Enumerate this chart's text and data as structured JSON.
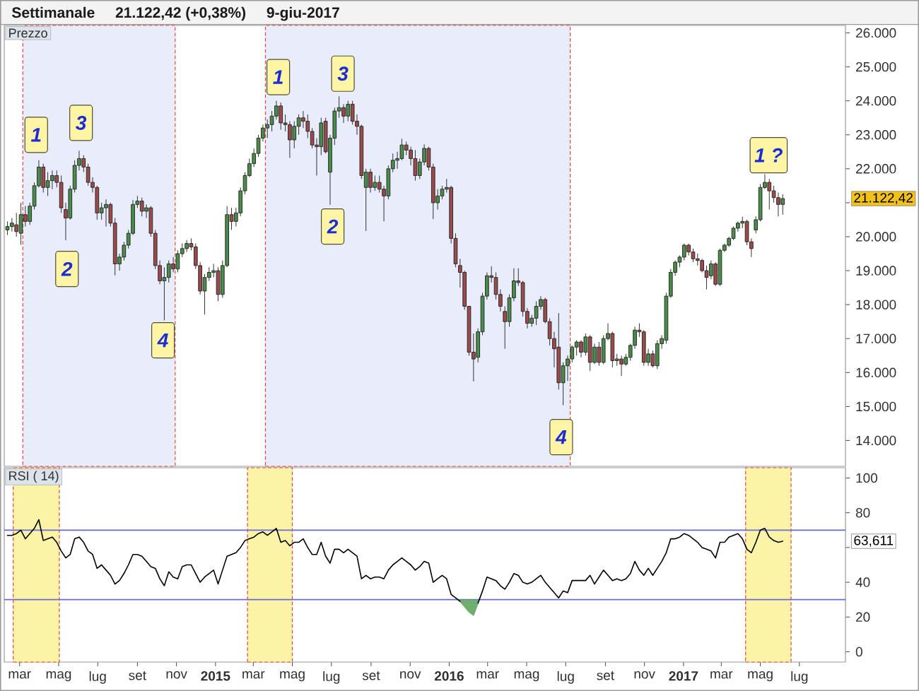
{
  "chart_data": [
    {
      "type": "candlestick",
      "title": "Prezzo",
      "annotations": [
        "Settimanale",
        "21.122,42 (+0,38%)",
        "9-giu-2017",
        {
          "text": "1",
          "x": "2014-03-27",
          "y": 23000
        },
        {
          "text": "2",
          "x": "2014-05-14",
          "y": 19050
        },
        {
          "text": "3",
          "x": "2014-06-05",
          "y": 23350
        },
        {
          "text": "4",
          "x": "2014-10-11",
          "y": 16950
        },
        {
          "text": "1",
          "x": "2015-04-09",
          "y": 24700
        },
        {
          "text": "2",
          "x": "2015-07-03",
          "y": 20300
        },
        {
          "text": "3",
          "x": "2015-07-19",
          "y": 24800
        },
        {
          "text": "4",
          "x": "2016-06-24",
          "y": 14100
        },
        {
          "text": "1 ?",
          "x": "2017-05-14",
          "y": 22400
        },
        "21.122,42"
      ],
      "x": [
        "2014-02-10",
        "2014-02-17",
        "2014-02-24",
        "2014-03-03",
        "2014-03-10",
        "2014-03-17",
        "2014-03-24",
        "2014-03-31",
        "2014-04-07",
        "2014-04-14",
        "2014-04-21",
        "2014-04-28",
        "2014-05-05",
        "2014-05-12",
        "2014-05-19",
        "2014-05-26",
        "2014-06-02",
        "2014-06-09",
        "2014-06-16",
        "2014-06-23",
        "2014-06-30",
        "2014-07-07",
        "2014-07-14",
        "2014-07-21",
        "2014-07-28",
        "2014-08-04",
        "2014-08-11",
        "2014-08-18",
        "2014-08-25",
        "2014-09-01",
        "2014-09-08",
        "2014-09-15",
        "2014-09-22",
        "2014-09-29",
        "2014-10-06",
        "2014-10-13",
        "2014-10-20",
        "2014-10-27",
        "2014-11-03",
        "2014-11-10",
        "2014-11-17",
        "2014-11-24",
        "2014-12-01",
        "2014-12-08",
        "2014-12-15",
        "2014-12-22",
        "2014-12-29",
        "2015-01-05",
        "2015-01-12",
        "2015-01-19",
        "2015-01-26",
        "2015-02-02",
        "2015-02-09",
        "2015-02-16",
        "2015-02-23",
        "2015-03-02",
        "2015-03-09",
        "2015-03-16",
        "2015-03-23",
        "2015-03-30",
        "2015-04-06",
        "2015-04-13",
        "2015-04-20",
        "2015-04-27",
        "2015-05-04",
        "2015-05-11",
        "2015-05-18",
        "2015-05-25",
        "2015-06-01",
        "2015-06-08",
        "2015-06-15",
        "2015-06-22",
        "2015-06-29",
        "2015-07-06",
        "2015-07-13",
        "2015-07-20",
        "2015-07-27",
        "2015-08-03",
        "2015-08-10",
        "2015-08-17",
        "2015-08-24",
        "2015-08-31",
        "2015-09-07",
        "2015-09-14",
        "2015-09-21",
        "2015-09-28",
        "2015-10-05",
        "2015-10-12",
        "2015-10-19",
        "2015-10-26",
        "2015-11-02",
        "2015-11-09",
        "2015-11-16",
        "2015-11-23",
        "2015-11-30",
        "2015-12-07",
        "2015-12-14",
        "2015-12-21",
        "2015-12-28",
        "2016-01-04",
        "2016-01-11",
        "2016-01-18",
        "2016-01-25",
        "2016-02-01",
        "2016-02-08",
        "2016-02-15",
        "2016-02-22",
        "2016-02-29",
        "2016-03-07",
        "2016-03-14",
        "2016-03-21",
        "2016-03-28",
        "2016-04-04",
        "2016-04-11",
        "2016-04-18",
        "2016-04-25",
        "2016-05-02",
        "2016-05-09",
        "2016-05-16",
        "2016-05-23",
        "2016-05-30",
        "2016-06-06",
        "2016-06-13",
        "2016-06-20",
        "2016-06-27",
        "2016-07-04",
        "2016-07-11",
        "2016-07-18",
        "2016-07-25",
        "2016-08-01",
        "2016-08-08",
        "2016-08-15",
        "2016-08-22",
        "2016-08-29",
        "2016-09-05",
        "2016-09-12",
        "2016-09-19",
        "2016-09-26",
        "2016-10-03",
        "2016-10-10",
        "2016-10-17",
        "2016-10-24",
        "2016-10-31",
        "2016-11-07",
        "2016-11-14",
        "2016-11-21",
        "2016-11-28",
        "2016-12-05",
        "2016-12-12",
        "2016-12-19",
        "2016-12-26",
        "2017-01-02",
        "2017-01-09",
        "2017-01-16",
        "2017-01-23",
        "2017-01-30",
        "2017-02-06",
        "2017-02-13",
        "2017-02-20",
        "2017-02-27",
        "2017-03-06",
        "2017-03-13",
        "2017-03-20",
        "2017-03-27",
        "2017-04-03",
        "2017-04-10",
        "2017-04-17",
        "2017-04-24",
        "2017-05-01",
        "2017-05-08",
        "2017-05-15",
        "2017-05-22",
        "2017-05-29",
        "2017-06-05"
      ],
      "ohlc": [
        [
          20200,
          20450,
          20050,
          20300
        ],
        [
          20300,
          20550,
          20150,
          20400
        ],
        [
          20350,
          20700,
          20000,
          20150
        ],
        [
          20100,
          21000,
          19760,
          20650
        ],
        [
          20650,
          20900,
          20300,
          20450
        ],
        [
          20450,
          21000,
          20350,
          20900
        ],
        [
          20900,
          21600,
          20800,
          21500
        ],
        [
          21500,
          22250,
          21450,
          22050
        ],
        [
          22050,
          22150,
          21300,
          21450
        ],
        [
          21450,
          21900,
          21200,
          21650
        ],
        [
          21650,
          21950,
          21400,
          21800
        ],
        [
          21800,
          21950,
          21450,
          21600
        ],
        [
          21600,
          21800,
          20700,
          20850
        ],
        [
          20800,
          21000,
          19900,
          20550
        ],
        [
          20550,
          21500,
          20500,
          21400
        ],
        [
          21400,
          22250,
          21300,
          22100
        ],
        [
          22100,
          22530,
          21950,
          22300
        ],
        [
          22300,
          22400,
          21900,
          22050
        ],
        [
          22050,
          22150,
          21500,
          21600
        ],
        [
          21600,
          21750,
          21300,
          21450
        ],
        [
          21450,
          21500,
          20500,
          20700
        ],
        [
          20700,
          21000,
          20500,
          20850
        ],
        [
          20850,
          21100,
          20300,
          20950
        ],
        [
          20950,
          21000,
          20300,
          20400
        ],
        [
          20400,
          20550,
          18860,
          19200
        ],
        [
          19200,
          19500,
          19000,
          19400
        ],
        [
          19400,
          19850,
          19300,
          19750
        ],
        [
          19750,
          20200,
          19650,
          20100
        ],
        [
          20100,
          21080,
          20050,
          20950
        ],
        [
          20950,
          21200,
          20850,
          21050
        ],
        [
          21050,
          21150,
          20600,
          20750
        ],
        [
          20750,
          20950,
          20550,
          20850
        ],
        [
          20850,
          20900,
          20000,
          20100
        ],
        [
          20100,
          20200,
          19050,
          19150
        ],
        [
          19150,
          19300,
          18600,
          18700
        ],
        [
          18700,
          19100,
          17540,
          18800
        ],
        [
          18800,
          19300,
          18650,
          19200
        ],
        [
          19200,
          19400,
          18950,
          19050
        ],
        [
          19050,
          19600,
          18950,
          19500
        ],
        [
          19500,
          19800,
          19400,
          19650
        ],
        [
          19650,
          19900,
          19550,
          19800
        ],
        [
          19800,
          19950,
          19600,
          19700
        ],
        [
          19700,
          19800,
          19050,
          19150
        ],
        [
          19150,
          19250,
          18300,
          18400
        ],
        [
          18400,
          18900,
          17710,
          18800
        ],
        [
          18800,
          19100,
          18700,
          18950
        ],
        [
          18950,
          19200,
          18800,
          19000
        ],
        [
          19000,
          19100,
          18100,
          18300
        ],
        [
          18300,
          19300,
          18200,
          19150
        ],
        [
          19150,
          20900,
          19100,
          20650
        ],
        [
          20650,
          20850,
          20200,
          20450
        ],
        [
          20450,
          20850,
          20300,
          20700
        ],
        [
          20700,
          21450,
          20600,
          21350
        ],
        [
          21350,
          21900,
          21250,
          21800
        ],
        [
          21800,
          22300,
          21750,
          22150
        ],
        [
          22150,
          22600,
          22050,
          22450
        ],
        [
          22450,
          23000,
          22350,
          22900
        ],
        [
          22900,
          23300,
          22800,
          23200
        ],
        [
          23200,
          23450,
          22900,
          23300
        ],
        [
          23300,
          23700,
          23100,
          23550
        ],
        [
          23550,
          24000,
          23450,
          23850
        ],
        [
          23850,
          23950,
          23150,
          23350
        ],
        [
          23350,
          23600,
          23100,
          23300
        ],
        [
          23300,
          23400,
          22320,
          22850
        ],
        [
          22850,
          23400,
          22600,
          23250
        ],
        [
          23250,
          23600,
          23000,
          23500
        ],
        [
          23500,
          23700,
          23200,
          23400
        ],
        [
          23400,
          23600,
          22900,
          23100
        ],
        [
          23100,
          23200,
          22600,
          22700
        ],
        [
          22700,
          22900,
          21800,
          22650
        ],
        [
          22650,
          23500,
          22400,
          23350
        ],
        [
          23400,
          23500,
          22450,
          22500
        ],
        [
          21900,
          23000,
          20940,
          22900
        ],
        [
          22900,
          23800,
          22700,
          23700
        ],
        [
          23700,
          24130,
          23500,
          23800
        ],
        [
          23800,
          23900,
          23350,
          23550
        ],
        [
          23550,
          24000,
          23400,
          23900
        ],
        [
          23900,
          24000,
          23300,
          23400
        ],
        [
          23400,
          23600,
          23000,
          23250
        ],
        [
          23250,
          23300,
          21700,
          21800
        ],
        [
          21450,
          22000,
          20170,
          21900
        ],
        [
          21900,
          22000,
          21300,
          21450
        ],
        [
          21450,
          21800,
          21350,
          21600
        ],
        [
          21600,
          21800,
          21300,
          21400
        ],
        [
          21400,
          21500,
          20450,
          21200
        ],
        [
          21200,
          22100,
          21100,
          22000
        ],
        [
          22000,
          22450,
          21900,
          22250
        ],
        [
          22250,
          22500,
          22000,
          22300
        ],
        [
          22300,
          22880,
          22250,
          22700
        ],
        [
          22700,
          22800,
          22400,
          22550
        ],
        [
          22550,
          22650,
          22100,
          22300
        ],
        [
          22300,
          22550,
          21650,
          21800
        ],
        [
          21800,
          22300,
          21700,
          22200
        ],
        [
          22200,
          22720,
          22100,
          22600
        ],
        [
          22600,
          22650,
          21950,
          22050
        ],
        [
          22050,
          22150,
          20520,
          21000
        ],
        [
          21000,
          21400,
          20800,
          21200
        ],
        [
          21200,
          21500,
          21100,
          21400
        ],
        [
          21400,
          21700,
          21300,
          21450
        ],
        [
          21450,
          21500,
          19800,
          19950
        ],
        [
          19950,
          20100,
          19100,
          19200
        ],
        [
          19150,
          19350,
          18500,
          18950
        ],
        [
          18950,
          19000,
          17850,
          17950
        ],
        [
          17950,
          17950,
          16500,
          16600
        ],
        [
          16600,
          17150,
          15740,
          16400
        ],
        [
          16450,
          17300,
          16300,
          17200
        ],
        [
          17200,
          18350,
          17100,
          18250
        ],
        [
          18250,
          18950,
          18150,
          18850
        ],
        [
          18850,
          19130,
          18650,
          18800
        ],
        [
          18800,
          18950,
          18150,
          18300
        ],
        [
          18300,
          18450,
          17800,
          17950
        ],
        [
          17800,
          17950,
          16700,
          17500
        ],
        [
          17500,
          18300,
          17350,
          18200
        ],
        [
          18200,
          19070,
          18100,
          18700
        ],
        [
          18700,
          19070,
          18550,
          18650
        ],
        [
          18650,
          18700,
          17650,
          17800
        ],
        [
          17800,
          17900,
          17300,
          17450
        ],
        [
          17450,
          17700,
          17350,
          17600
        ],
        [
          17600,
          18100,
          17400,
          17950
        ],
        [
          17950,
          18250,
          17850,
          18150
        ],
        [
          18150,
          18200,
          17450,
          17500
        ],
        [
          17500,
          17600,
          16800,
          17000
        ],
        [
          17000,
          17200,
          16150,
          16700
        ],
        [
          16750,
          17750,
          15500,
          15700
        ],
        [
          15700,
          16300,
          15040,
          16200
        ],
        [
          16200,
          16500,
          15750,
          16400
        ],
        [
          16400,
          16800,
          16300,
          16750
        ],
        [
          16750,
          16950,
          16500,
          16900
        ],
        [
          16900,
          16950,
          16450,
          16600
        ],
        [
          16600,
          17150,
          16500,
          17050
        ],
        [
          17050,
          17100,
          16050,
          16300
        ],
        [
          16300,
          16850,
          16250,
          16750
        ],
        [
          16750,
          16900,
          16200,
          16300
        ],
        [
          16300,
          17100,
          16250,
          17000
        ],
        [
          17000,
          17450,
          16950,
          17150
        ],
        [
          17150,
          17200,
          16150,
          16350
        ],
        [
          16350,
          16550,
          16200,
          16400
        ],
        [
          16400,
          16500,
          15900,
          16250
        ],
        [
          16250,
          16550,
          16200,
          16450
        ],
        [
          16450,
          16850,
          16350,
          16800
        ],
        [
          16800,
          17350,
          16700,
          17250
        ],
        [
          17250,
          17450,
          17050,
          17200
        ],
        [
          17200,
          17250,
          16200,
          16300
        ],
        [
          16300,
          16700,
          16200,
          16550
        ],
        [
          16550,
          16650,
          16150,
          16200
        ],
        [
          16200,
          16950,
          16100,
          16850
        ],
        [
          16850,
          17100,
          16700,
          17000
        ],
        [
          16950,
          18350,
          16850,
          18250
        ],
        [
          18250,
          19050,
          18200,
          18950
        ],
        [
          18950,
          19300,
          18850,
          19250
        ],
        [
          19250,
          19450,
          19100,
          19400
        ],
        [
          19400,
          19800,
          19300,
          19750
        ],
        [
          19750,
          19800,
          19450,
          19550
        ],
        [
          19550,
          19650,
          19250,
          19350
        ],
        [
          19350,
          19500,
          19150,
          19300
        ],
        [
          19300,
          19350,
          18950,
          19000
        ],
        [
          19000,
          19150,
          18450,
          18800
        ],
        [
          18850,
          19300,
          18750,
          19200
        ],
        [
          19200,
          19250,
          18550,
          18600
        ],
        [
          18600,
          19650,
          18550,
          19600
        ],
        [
          19600,
          19800,
          19550,
          19750
        ],
        [
          19750,
          20000,
          19700,
          19950
        ],
        [
          19950,
          20300,
          19900,
          20250
        ],
        [
          20250,
          20450,
          20150,
          20400
        ],
        [
          20400,
          20590,
          20250,
          20450
        ],
        [
          20450,
          20500,
          19750,
          19850
        ],
        [
          19850,
          19950,
          19400,
          19650
        ],
        [
          20200,
          20600,
          20100,
          20500
        ],
        [
          20500,
          21550,
          20450,
          21450
        ],
        [
          21450,
          21840,
          21400,
          21600
        ],
        [
          21600,
          21700,
          20800,
          21350
        ],
        [
          21350,
          21500,
          21000,
          21150
        ],
        [
          21150,
          21300,
          20600,
          20950
        ],
        [
          20950,
          21250,
          20650,
          21122.42
        ]
      ],
      "colors": [
        "#4a8c4a",
        "#4a8c4a",
        "#9c4a4a",
        "#4a8c4a",
        "#9c4a4a",
        "#4a8c4a",
        "#4a8c4a",
        "#4a8c4a",
        "#9c4a4a",
        "#4a8c4a",
        "#4a8c4a",
        "#9c4a4a",
        "#9c4a4a",
        "#9c4a4a",
        "#4a8c4a",
        "#4a8c4a",
        "#4a8c4a",
        "#9c4a4a",
        "#9c4a4a",
        "#9c4a4a",
        "#9c4a4a",
        "#4a8c4a",
        "#4a8c4a",
        "#9c4a4a",
        "#9c4a4a",
        "#4a8c4a",
        "#4a8c4a",
        "#4a8c4a",
        "#4a8c4a",
        "#4a8c4a",
        "#9c4a4a",
        "#4a8c4a",
        "#9c4a4a",
        "#9c4a4a",
        "#9c4a4a",
        "#4a8c4a",
        "#4a8c4a",
        "#9c4a4a",
        "#4a8c4a",
        "#4a8c4a",
        "#4a8c4a",
        "#9c4a4a",
        "#9c4a4a",
        "#9c4a4a",
        "#4a8c4a",
        "#4a8c4a",
        "#4a8c4a",
        "#9c4a4a",
        "#4a8c4a",
        "#4a8c4a",
        "#9c4a4a",
        "#4a8c4a",
        "#4a8c4a",
        "#4a8c4a",
        "#4a8c4a",
        "#4a8c4a",
        "#4a8c4a",
        "#4a8c4a",
        "#4a8c4a",
        "#4a8c4a",
        "#4a8c4a",
        "#9c4a4a",
        "#9c4a4a",
        "#9c4a4a",
        "#4a8c4a",
        "#4a8c4a",
        "#9c4a4a",
        "#9c4a4a",
        "#9c4a4a",
        "#9c4a4a",
        "#4a8c4a",
        "#9c4a4a",
        "#4a8c4a",
        "#4a8c4a",
        "#4a8c4a",
        "#9c4a4a",
        "#4a8c4a",
        "#9c4a4a",
        "#9c4a4a",
        "#9c4a4a",
        "#4a8c4a",
        "#9c4a4a",
        "#4a8c4a",
        "#9c4a4a",
        "#9c4a4a",
        "#4a8c4a",
        "#4a8c4a",
        "#4a8c4a",
        "#4a8c4a",
        "#9c4a4a",
        "#9c4a4a",
        "#9c4a4a",
        "#4a8c4a",
        "#4a8c4a",
        "#9c4a4a",
        "#9c4a4a",
        "#4a8c4a",
        "#4a8c4a",
        "#4a8c4a",
        "#9c4a4a",
        "#9c4a4a",
        "#9c4a4a",
        "#9c4a4a",
        "#9c4a4a",
        "#9c4a4a",
        "#4a8c4a",
        "#4a8c4a",
        "#4a8c4a",
        "#9c4a4a",
        "#9c4a4a",
        "#9c4a4a",
        "#9c4a4a",
        "#4a8c4a",
        "#4a8c4a",
        "#9c4a4a",
        "#9c4a4a",
        "#9c4a4a",
        "#4a8c4a",
        "#4a8c4a",
        "#4a8c4a",
        "#9c4a4a",
        "#9c4a4a",
        "#9c4a4a",
        "#9c4a4a",
        "#4a8c4a",
        "#4a8c4a",
        "#4a8c4a",
        "#4a8c4a",
        "#9c4a4a",
        "#4a8c4a",
        "#9c4a4a",
        "#4a8c4a",
        "#9c4a4a",
        "#4a8c4a",
        "#4a8c4a",
        "#9c4a4a",
        "#4a8c4a",
        "#9c4a4a",
        "#4a8c4a",
        "#4a8c4a",
        "#4a8c4a",
        "#9c4a4a",
        "#9c4a4a",
        "#4a8c4a",
        "#9c4a4a",
        "#4a8c4a",
        "#4a8c4a",
        "#4a8c4a",
        "#4a8c4a",
        "#4a8c4a",
        "#4a8c4a",
        "#4a8c4a",
        "#9c4a4a",
        "#9c4a4a",
        "#9c4a4a",
        "#9c4a4a",
        "#9c4a4a",
        "#4a8c4a",
        "#9c4a4a",
        "#4a8c4a",
        "#4a8c4a",
        "#4a8c4a",
        "#4a8c4a",
        "#4a8c4a",
        "#4a8c4a",
        "#9c4a4a",
        "#9c4a4a",
        "#4a8c4a",
        "#4a8c4a",
        "#4a8c4a",
        "#9c4a4a",
        "#9c4a4a",
        "#9c4a4a",
        "#4a8c4a"
      ],
      "xlim": [
        "2014-02-05",
        "2017-09-11"
      ],
      "ylim": [
        13240,
        26220
      ],
      "yticks": [
        {
          "value": 14000,
          "label": "14.000"
        },
        {
          "value": 15000,
          "label": "15.000"
        },
        {
          "value": 16000,
          "label": "16.000"
        },
        {
          "value": 17000,
          "label": "17.000"
        },
        {
          "value": 18000,
          "label": "18.000"
        },
        {
          "value": 19000,
          "label": "19.000"
        },
        {
          "value": 20000,
          "label": "20.000"
        },
        {
          "value": 21000,
          "label": null
        },
        {
          "value": 22000,
          "label": "22.000"
        },
        {
          "value": 23000,
          "label": "23.000"
        },
        {
          "value": 24000,
          "label": "24.000"
        },
        {
          "value": 25000,
          "label": "25.000"
        },
        {
          "value": 26000,
          "label": "26.000"
        }
      ],
      "tick_labels": "y",
      "bands": [
        {
          "axis": "x",
          "from": "2014-03-06",
          "to": "2014-10-30",
          "color": "#e8ecfb"
        },
        {
          "axis": "x",
          "from": "2015-03-20",
          "to": "2016-07-08",
          "color": "#e8ecfb"
        }
      ]
    },
    {
      "type": "line",
      "title": "RSI ( 14)",
      "x": [
        "2014-02-10",
        "2014-02-17",
        "2014-02-24",
        "2014-03-03",
        "2014-03-10",
        "2014-03-17",
        "2014-03-24",
        "2014-03-31",
        "2014-04-07",
        "2014-04-14",
        "2014-04-21",
        "2014-04-28",
        "2014-05-05",
        "2014-05-12",
        "2014-05-19",
        "2014-05-26",
        "2014-06-02",
        "2014-06-09",
        "2014-06-16",
        "2014-06-23",
        "2014-06-30",
        "2014-07-07",
        "2014-07-14",
        "2014-07-21",
        "2014-07-28",
        "2014-08-04",
        "2014-08-11",
        "2014-08-18",
        "2014-08-25",
        "2014-09-01",
        "2014-09-08",
        "2014-09-15",
        "2014-09-22",
        "2014-09-29",
        "2014-10-06",
        "2014-10-13",
        "2014-10-20",
        "2014-10-27",
        "2014-11-03",
        "2014-11-10",
        "2014-11-17",
        "2014-11-24",
        "2014-12-01",
        "2014-12-08",
        "2014-12-15",
        "2014-12-22",
        "2014-12-29",
        "2015-01-05",
        "2015-01-12",
        "2015-01-19",
        "2015-01-26",
        "2015-02-02",
        "2015-02-09",
        "2015-02-16",
        "2015-02-23",
        "2015-03-02",
        "2015-03-09",
        "2015-03-16",
        "2015-03-23",
        "2015-03-30",
        "2015-04-06",
        "2015-04-13",
        "2015-04-20",
        "2015-04-27",
        "2015-05-04",
        "2015-05-11",
        "2015-05-18",
        "2015-05-25",
        "2015-06-01",
        "2015-06-08",
        "2015-06-15",
        "2015-06-22",
        "2015-06-29",
        "2015-07-06",
        "2015-07-13",
        "2015-07-20",
        "2015-07-27",
        "2015-08-03",
        "2015-08-10",
        "2015-08-17",
        "2015-08-24",
        "2015-08-31",
        "2015-09-07",
        "2015-09-14",
        "2015-09-21",
        "2015-09-28",
        "2015-10-05",
        "2015-10-12",
        "2015-10-19",
        "2015-10-26",
        "2015-11-02",
        "2015-11-09",
        "2015-11-16",
        "2015-11-23",
        "2015-11-30",
        "2015-12-07",
        "2015-12-14",
        "2015-12-21",
        "2015-12-28",
        "2016-01-04",
        "2016-01-11",
        "2016-01-18",
        "2016-01-25",
        "2016-02-01",
        "2016-02-08",
        "2016-02-15",
        "2016-02-22",
        "2016-02-29",
        "2016-03-07",
        "2016-03-14",
        "2016-03-21",
        "2016-03-28",
        "2016-04-04",
        "2016-04-11",
        "2016-04-18",
        "2016-04-25",
        "2016-05-02",
        "2016-05-09",
        "2016-05-16",
        "2016-05-23",
        "2016-05-30",
        "2016-06-06",
        "2016-06-13",
        "2016-06-20",
        "2016-06-27",
        "2016-07-04",
        "2016-07-11",
        "2016-07-18",
        "2016-07-25",
        "2016-08-01",
        "2016-08-08",
        "2016-08-15",
        "2016-08-22",
        "2016-08-29",
        "2016-09-05",
        "2016-09-12",
        "2016-09-19",
        "2016-09-26",
        "2016-10-03",
        "2016-10-10",
        "2016-10-17",
        "2016-10-24",
        "2016-10-31",
        "2016-11-07",
        "2016-11-14",
        "2016-11-21",
        "2016-11-28",
        "2016-12-05",
        "2016-12-12",
        "2016-12-19",
        "2016-12-26",
        "2017-01-02",
        "2017-01-09",
        "2017-01-16",
        "2017-01-23",
        "2017-01-30",
        "2017-02-06",
        "2017-02-13",
        "2017-02-20",
        "2017-02-27",
        "2017-03-06",
        "2017-03-13",
        "2017-03-20",
        "2017-03-27",
        "2017-04-03",
        "2017-04-10",
        "2017-04-17",
        "2017-04-24",
        "2017-05-01",
        "2017-05-08",
        "2017-05-15",
        "2017-05-22",
        "2017-05-29",
        "2017-06-05"
      ],
      "series": [
        {
          "type": "area",
          "color": "#6fae6f",
          "x": [
            "2016-01-14",
            "2016-01-18",
            "2016-01-25",
            "2016-02-01",
            "2016-02-08",
            "2016-02-15",
            "2016-02-17"
          ],
          "values": [
            30,
            29,
            26,
            23,
            21,
            28,
            30
          ]
        },
        {
          "color": "#000000",
          "values": [
            67,
            67,
            68,
            70,
            65,
            68,
            71,
            76,
            64,
            65,
            66,
            63,
            58,
            54,
            56,
            65,
            66,
            63,
            58,
            56,
            48,
            50,
            47,
            44,
            39,
            41,
            45,
            50,
            56,
            56,
            55,
            52,
            49,
            48,
            42,
            38,
            46,
            43,
            42,
            49,
            50,
            50,
            45,
            40,
            43,
            45,
            47,
            39,
            47,
            55,
            56,
            57,
            60,
            64,
            65,
            66,
            68,
            69,
            67,
            69,
            71,
            63,
            64,
            61,
            63,
            63,
            65,
            60,
            56,
            56,
            63,
            55,
            51,
            59,
            59,
            57,
            59,
            57,
            55,
            42,
            44,
            42,
            43,
            43,
            42,
            47,
            50,
            52,
            54,
            52,
            50,
            47,
            49,
            52,
            51,
            40,
            42,
            44,
            42,
            33,
            31,
            29,
            null,
            null,
            null,
            28,
            35,
            43,
            42,
            41,
            38,
            36,
            40,
            45,
            44,
            40,
            39,
            40,
            42,
            44,
            40,
            37,
            34,
            31,
            35,
            34,
            41,
            41,
            41,
            41,
            44,
            39,
            43,
            47,
            44,
            41,
            42,
            41,
            42,
            45,
            52,
            47,
            44,
            48,
            44,
            48,
            52,
            57,
            65,
            65,
            66,
            68,
            67,
            65,
            63,
            60,
            59,
            58,
            54,
            63,
            63,
            66,
            67,
            68,
            65,
            59,
            57,
            63,
            70,
            71,
            66,
            64,
            63,
            63.611
          ]
        }
      ],
      "xlim": [
        "2014-02-05",
        "2017-09-11"
      ],
      "ylim": [
        -5.9,
        105.9
      ],
      "xticks": [
        {
          "value": "2014-03",
          "label": "mar"
        },
        {
          "value": "2014-05",
          "label": "mag"
        },
        {
          "value": "2014-07",
          "label": "lug"
        },
        {
          "value": "2014-09",
          "label": "set"
        },
        {
          "value": "2014-11",
          "label": "nov"
        },
        {
          "value": "2015-01",
          "label": "2015"
        },
        {
          "value": "2015-03",
          "label": "mar"
        },
        {
          "value": "2015-05",
          "label": "mag"
        },
        {
          "value": "2015-07",
          "label": "lug"
        },
        {
          "value": "2015-09",
          "label": "set"
        },
        {
          "value": "2015-11",
          "label": "nov"
        },
        {
          "value": "2016-01",
          "label": "2016"
        },
        {
          "value": "2016-03",
          "label": "mar"
        },
        {
          "value": "2016-05",
          "label": "mag"
        },
        {
          "value": "2016-07",
          "label": "lug"
        },
        {
          "value": "2016-09",
          "label": "set"
        },
        {
          "value": "2016-11",
          "label": "nov"
        },
        {
          "value": "2017-01",
          "label": "2017"
        },
        {
          "value": "2017-03",
          "label": "mar"
        },
        {
          "value": "2017-05",
          "label": "mag"
        },
        {
          "value": "2017-07",
          "label": "lug"
        }
      ],
      "yticks": [
        0,
        20,
        40,
        {
          "value": 60,
          "label": null
        },
        80,
        100
      ],
      "ref_lines": [
        {
          "axis": "y",
          "value": 70,
          "color": "#6b6bd6"
        },
        {
          "axis": "y",
          "value": 30,
          "color": "#6b6bd6"
        }
      ],
      "bands": [
        {
          "axis": "x",
          "from": "2014-02-19",
          "to": "2014-05-02",
          "color": "#fbf3a6"
        },
        {
          "axis": "x",
          "from": "2015-02-20",
          "to": "2015-05-01",
          "color": "#fbf3a6"
        },
        {
          "axis": "x",
          "from": "2017-04-08",
          "to": "2017-06-18",
          "color": "#fbf3a6"
        }
      ],
      "annotations": [
        "63,611"
      ]
    }
  ]
}
